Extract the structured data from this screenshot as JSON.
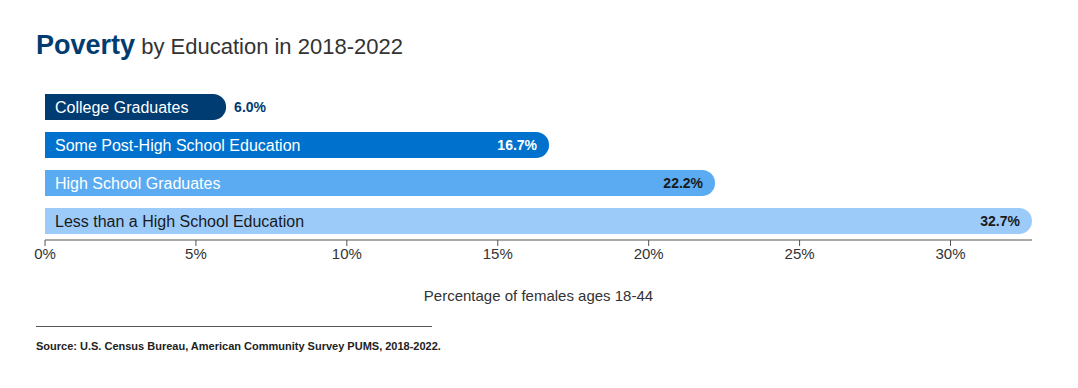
{
  "chart_data": {
    "type": "bar",
    "title": "Poverty by Education in 2018-2022",
    "orientation": "horizontal",
    "categories": [
      "College Graduates",
      "Some Post-High School Education",
      "High School Graduates",
      "Less than a High School Education"
    ],
    "values": [
      6.0,
      16.7,
      22.2,
      32.7
    ],
    "value_labels": [
      "6.0%",
      "16.7%",
      "22.2%",
      "32.7%"
    ],
    "data_labels": true,
    "colors": [
      "#003b71",
      "#0072ce",
      "#5aabf2",
      "#9ccbfa"
    ],
    "xlabel": "Percentage of females ages 18-44",
    "xlim": [
      0,
      32.7
    ],
    "xticks": [
      {
        "value": 0,
        "label": "0%"
      },
      {
        "value": 5,
        "label": "5%"
      },
      {
        "value": 10,
        "label": "10%"
      },
      {
        "value": 15,
        "label": "15%"
      },
      {
        "value": 20,
        "label": "20%"
      },
      {
        "value": 25,
        "label": "25%"
      },
      {
        "value": 30,
        "label": "30%"
      }
    ],
    "grid": false,
    "note": "Source: U.S. Census Bureau, American Community Survey PUMS, 2018-2022."
  }
}
